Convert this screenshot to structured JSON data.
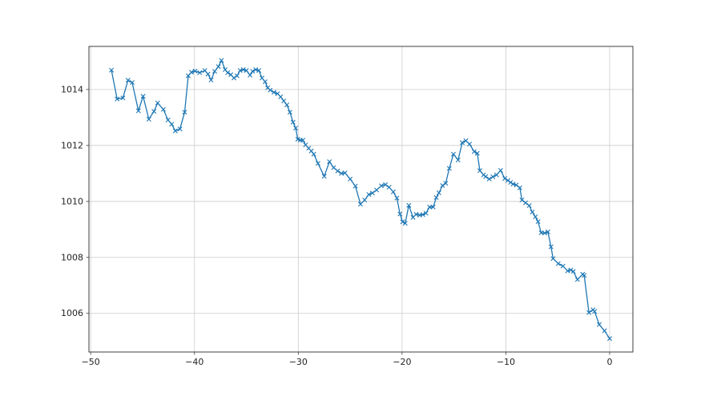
{
  "chart_data": {
    "type": "line",
    "title": "",
    "xlabel": "",
    "ylabel": "",
    "legend": null,
    "grid": true,
    "marker": "x",
    "line_color": "#1f77b4",
    "grid_color": "#cccccc",
    "spine_color": "#3f3f3f",
    "tick_label_color": "#232323",
    "background_color": "#ffffff",
    "xlim": [
      -50.17,
      2.24
    ],
    "ylim": [
      1004.62,
      1015.54
    ],
    "xticks": [
      -50,
      -40,
      -30,
      -20,
      -10,
      0
    ],
    "xtick_labels": [
      "−50",
      "−40",
      "−30",
      "−20",
      "−10",
      "0"
    ],
    "yticks": [
      1006,
      1008,
      1010,
      1012,
      1014
    ],
    "ytick_labels": [
      "1006",
      "1008",
      "1010",
      "1012",
      "1014"
    ],
    "points": [
      [
        -48.0,
        1014.69
      ],
      [
        -47.45,
        1013.66
      ],
      [
        -46.9,
        1013.7
      ],
      [
        -46.4,
        1014.33
      ],
      [
        -46.0,
        1014.25
      ],
      [
        -45.4,
        1013.24
      ],
      [
        -44.95,
        1013.76
      ],
      [
        -44.4,
        1012.94
      ],
      [
        -43.9,
        1013.22
      ],
      [
        -43.55,
        1013.52
      ],
      [
        -43.0,
        1013.29
      ],
      [
        -42.55,
        1012.91
      ],
      [
        -42.2,
        1012.76
      ],
      [
        -41.85,
        1012.52
      ],
      [
        -41.4,
        1012.59
      ],
      [
        -40.95,
        1013.19
      ],
      [
        -40.6,
        1014.49
      ],
      [
        -40.3,
        1014.62
      ],
      [
        -39.95,
        1014.66
      ],
      [
        -39.5,
        1014.6
      ],
      [
        -39.0,
        1014.68
      ],
      [
        -38.7,
        1014.55
      ],
      [
        -38.4,
        1014.34
      ],
      [
        -38.05,
        1014.65
      ],
      [
        -37.7,
        1014.82
      ],
      [
        -37.4,
        1015.04
      ],
      [
        -37.05,
        1014.71
      ],
      [
        -36.8,
        1014.6
      ],
      [
        -36.5,
        1014.53
      ],
      [
        -36.2,
        1014.41
      ],
      [
        -35.9,
        1014.49
      ],
      [
        -35.6,
        1014.68
      ],
      [
        -35.3,
        1014.71
      ],
      [
        -35.0,
        1014.68
      ],
      [
        -34.65,
        1014.51
      ],
      [
        -34.4,
        1014.65
      ],
      [
        -34.1,
        1014.71
      ],
      [
        -33.8,
        1014.68
      ],
      [
        -33.5,
        1014.41
      ],
      [
        -33.2,
        1014.28
      ],
      [
        -32.95,
        1014.06
      ],
      [
        -32.7,
        1013.98
      ],
      [
        -32.35,
        1013.9
      ],
      [
        -32.0,
        1013.85
      ],
      [
        -31.7,
        1013.74
      ],
      [
        -31.4,
        1013.59
      ],
      [
        -31.1,
        1013.45
      ],
      [
        -30.8,
        1013.19
      ],
      [
        -30.5,
        1012.83
      ],
      [
        -30.25,
        1012.62
      ],
      [
        -30.05,
        1012.22
      ],
      [
        -29.8,
        1012.19
      ],
      [
        -29.55,
        1012.19
      ],
      [
        -29.3,
        1012.02
      ],
      [
        -29.0,
        1011.9
      ],
      [
        -28.75,
        1011.8
      ],
      [
        -28.5,
        1011.69
      ],
      [
        -28.1,
        1011.36
      ],
      [
        -27.5,
        1010.9
      ],
      [
        -27.0,
        1011.42
      ],
      [
        -26.6,
        1011.21
      ],
      [
        -26.2,
        1011.09
      ],
      [
        -25.85,
        1011.0
      ],
      [
        -25.5,
        1011.02
      ],
      [
        -25.0,
        1010.8
      ],
      [
        -24.5,
        1010.55
      ],
      [
        -24.0,
        1009.9
      ],
      [
        -23.6,
        1010.05
      ],
      [
        -23.2,
        1010.25
      ],
      [
        -22.85,
        1010.3
      ],
      [
        -22.45,
        1010.41
      ],
      [
        -22.0,
        1010.56
      ],
      [
        -21.6,
        1010.6
      ],
      [
        -21.25,
        1010.51
      ],
      [
        -20.85,
        1010.34
      ],
      [
        -20.5,
        1010.12
      ],
      [
        -20.2,
        1009.55
      ],
      [
        -19.95,
        1009.27
      ],
      [
        -19.7,
        1009.22
      ],
      [
        -19.35,
        1009.86
      ],
      [
        -18.95,
        1009.43
      ],
      [
        -18.65,
        1009.54
      ],
      [
        -18.3,
        1009.51
      ],
      [
        -18.0,
        1009.53
      ],
      [
        -17.7,
        1009.58
      ],
      [
        -17.35,
        1009.8
      ],
      [
        -17.0,
        1009.8
      ],
      [
        -16.7,
        1010.14
      ],
      [
        -16.45,
        1010.31
      ],
      [
        -16.1,
        1010.57
      ],
      [
        -15.8,
        1010.65
      ],
      [
        -15.45,
        1011.18
      ],
      [
        -15.05,
        1011.69
      ],
      [
        -14.6,
        1011.48
      ],
      [
        -14.2,
        1012.1
      ],
      [
        -13.85,
        1012.17
      ],
      [
        -13.5,
        1012.05
      ],
      [
        -13.05,
        1011.78
      ],
      [
        -12.75,
        1011.72
      ],
      [
        -12.5,
        1011.1
      ],
      [
        -12.15,
        1010.95
      ],
      [
        -11.95,
        1010.89
      ],
      [
        -11.6,
        1010.8
      ],
      [
        -11.25,
        1010.88
      ],
      [
        -10.9,
        1010.95
      ],
      [
        -10.5,
        1011.11
      ],
      [
        -10.1,
        1010.82
      ],
      [
        -9.8,
        1010.75
      ],
      [
        -9.55,
        1010.68
      ],
      [
        -9.3,
        1010.62
      ],
      [
        -9.0,
        1010.59
      ],
      [
        -8.65,
        1010.49
      ],
      [
        -8.45,
        1010.05
      ],
      [
        -8.1,
        1009.95
      ],
      [
        -7.75,
        1009.85
      ],
      [
        -7.45,
        1009.62
      ],
      [
        -7.15,
        1009.45
      ],
      [
        -6.9,
        1009.28
      ],
      [
        -6.6,
        1008.88
      ],
      [
        -6.25,
        1008.87
      ],
      [
        -5.95,
        1008.91
      ],
      [
        -5.65,
        1008.38
      ],
      [
        -5.45,
        1007.96
      ],
      [
        -4.95,
        1007.78
      ],
      [
        -4.5,
        1007.69
      ],
      [
        -4.05,
        1007.52
      ],
      [
        -3.75,
        1007.55
      ],
      [
        -3.5,
        1007.5
      ],
      [
        -3.1,
        1007.21
      ],
      [
        -2.6,
        1007.4
      ],
      [
        -2.45,
        1007.36
      ],
      [
        -2.0,
        1006.03
      ],
      [
        -1.6,
        1006.13
      ],
      [
        -1.45,
        1006.07
      ],
      [
        -1.0,
        1005.6
      ],
      [
        -0.5,
        1005.38
      ],
      [
        0.0,
        1005.1
      ]
    ]
  }
}
